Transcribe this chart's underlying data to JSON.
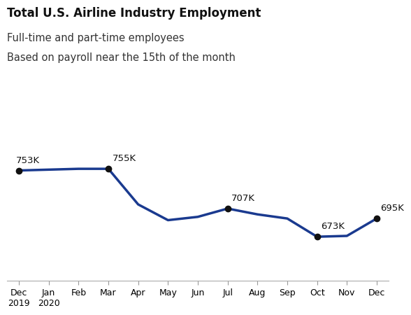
{
  "title": "Total U.S. Airline Industry Employment",
  "subtitle1": "Full-time and part-time employees",
  "subtitle2": "Based on payroll near the 15th of the month",
  "x_labels": [
    "Dec\n2019",
    "Jan\n2020",
    "Feb",
    "Mar",
    "Apr",
    "May",
    "Jun",
    "Jul",
    "Aug",
    "Sep",
    "Oct",
    "Nov",
    "Dec"
  ],
  "y_values": [
    753,
    754,
    755,
    755,
    712,
    693,
    697,
    707,
    700,
    695,
    673,
    674,
    695
  ],
  "annotated_points": {
    "0": "753K",
    "3": "755K",
    "7": "707K",
    "10": "673K",
    "12": "695K"
  },
  "line_color": "#1a3a8f",
  "marker_color": "#111111",
  "line_width": 2.5,
  "marker_size": 6,
  "background_color": "#ffffff",
  "ylim_min": 620,
  "ylim_max": 800,
  "title_fontsize": 12,
  "subtitle_fontsize": 10.5,
  "annotation_fontsize": 9.5,
  "tick_label_fontsize": 9
}
